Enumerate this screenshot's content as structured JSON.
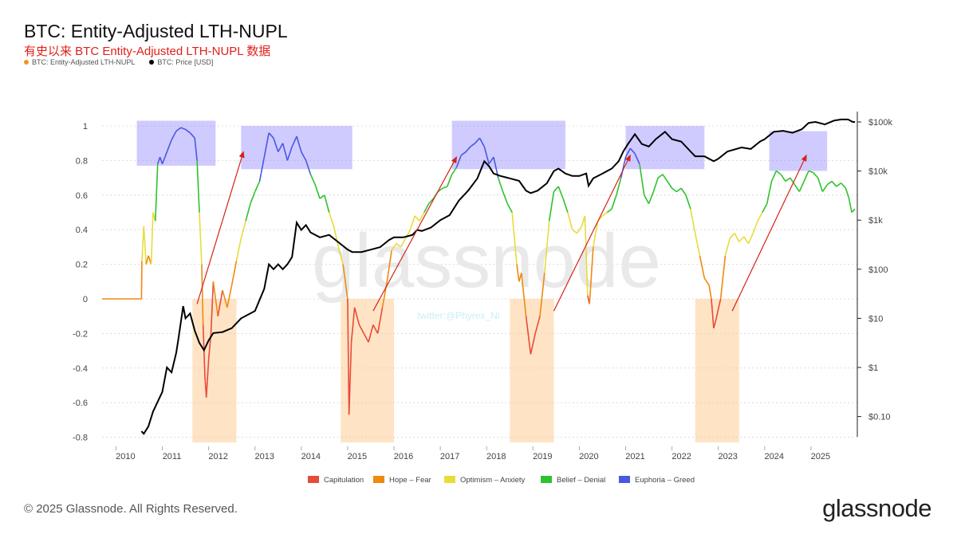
{
  "header": {
    "title": "BTC: Entity-Adjusted LTH-NUPL",
    "subtitle": "有史以来 BTC Entity-Adjusted LTH-NUPL 数据",
    "legend": [
      {
        "label": "BTC: Entity-Adjusted LTH-NUPL",
        "color": "#f7931a"
      },
      {
        "label": "BTC: Price [USD]",
        "color": "#000000"
      }
    ]
  },
  "watermark": "glassnode",
  "handle": "twitter:@Phyrex_Ni",
  "footer": {
    "copyright": "© 2025 Glassnode. All Rights Reserved.",
    "logo": "glassnode"
  },
  "chart_data": {
    "type": "line",
    "title": "BTC: Entity-Adjusted LTH-NUPL",
    "x_ticks": [
      2010,
      2011,
      2012,
      2013,
      2014,
      2015,
      2016,
      2017,
      2018,
      2019,
      2020,
      2021,
      2022,
      2023,
      2024,
      2025
    ],
    "xlim": [
      2009.7,
      2026.0
    ],
    "y_left": {
      "ticks": [
        1,
        0.8,
        0.6,
        0.4,
        0.2,
        0,
        -0.2,
        -0.4,
        -0.6,
        -0.8
      ],
      "lim": [
        -0.8,
        1.0
      ]
    },
    "y_right": {
      "ticks": [
        "$100k",
        "$10k",
        "$1k",
        "$100",
        "$10",
        "$1",
        "$0.10"
      ],
      "ticks_log10": [
        5,
        4,
        3,
        2,
        1,
        0,
        -1
      ]
    },
    "zones": [
      {
        "name": "Capitulation",
        "color": "#e84a3b",
        "lo": -1.0,
        "hi": 0
      },
      {
        "name": "Hope – Fear",
        "color": "#f0890f",
        "lo": 0,
        "hi": 0.25
      },
      {
        "name": "Optimism – Anxiety",
        "color": "#e8dc3a",
        "lo": 0.25,
        "hi": 0.5
      },
      {
        "name": "Belief – Denial",
        "color": "#2ec22e",
        "lo": 0.5,
        "hi": 0.75
      },
      {
        "name": "Euphoria – Greed",
        "color": "#4a58e0",
        "lo": 0.75,
        "hi": 1.1
      }
    ],
    "legend_bottom": [
      "Capitulation",
      "Hope – Fear",
      "Optimism – Anxiety",
      "Belief – Denial",
      "Euphoria – Greed"
    ],
    "nupl_series": {
      "name": "BTC: Entity-Adjusted LTH-NUPL",
      "points": [
        [
          2009.7,
          0
        ],
        [
          2010.55,
          0
        ],
        [
          2010.56,
          0.22
        ],
        [
          2010.6,
          0.42
        ],
        [
          2010.65,
          0.2
        ],
        [
          2010.7,
          0.25
        ],
        [
          2010.76,
          0.2
        ],
        [
          2010.8,
          0.5
        ],
        [
          2010.85,
          0.45
        ],
        [
          2010.9,
          0.78
        ],
        [
          2010.95,
          0.82
        ],
        [
          2011.0,
          0.78
        ],
        [
          2011.1,
          0.85
        ],
        [
          2011.2,
          0.92
        ],
        [
          2011.3,
          0.97
        ],
        [
          2011.4,
          0.99
        ],
        [
          2011.5,
          0.98
        ],
        [
          2011.6,
          0.96
        ],
        [
          2011.7,
          0.93
        ],
        [
          2011.75,
          0.8
        ],
        [
          2011.8,
          0.5
        ],
        [
          2011.85,
          0.2
        ],
        [
          2011.88,
          -0.15
        ],
        [
          2011.92,
          -0.45
        ],
        [
          2011.95,
          -0.57
        ],
        [
          2012.0,
          -0.35
        ],
        [
          2012.05,
          -0.2
        ],
        [
          2012.1,
          0.1
        ],
        [
          2012.2,
          -0.1
        ],
        [
          2012.3,
          0.05
        ],
        [
          2012.4,
          -0.05
        ],
        [
          2012.5,
          0.08
        ],
        [
          2012.6,
          0.22
        ],
        [
          2012.7,
          0.35
        ],
        [
          2012.8,
          0.45
        ],
        [
          2012.9,
          0.55
        ],
        [
          2013.0,
          0.62
        ],
        [
          2013.1,
          0.68
        ],
        [
          2013.2,
          0.82
        ],
        [
          2013.3,
          0.96
        ],
        [
          2013.4,
          0.93
        ],
        [
          2013.5,
          0.85
        ],
        [
          2013.6,
          0.9
        ],
        [
          2013.7,
          0.8
        ],
        [
          2013.8,
          0.88
        ],
        [
          2013.9,
          0.94
        ],
        [
          2014.0,
          0.85
        ],
        [
          2014.1,
          0.8
        ],
        [
          2014.2,
          0.72
        ],
        [
          2014.3,
          0.66
        ],
        [
          2014.4,
          0.58
        ],
        [
          2014.5,
          0.6
        ],
        [
          2014.6,
          0.5
        ],
        [
          2014.7,
          0.42
        ],
        [
          2014.8,
          0.3
        ],
        [
          2014.9,
          0.2
        ],
        [
          2015.0,
          0.0
        ],
        [
          2015.03,
          -0.67
        ],
        [
          2015.08,
          -0.25
        ],
        [
          2015.15,
          -0.05
        ],
        [
          2015.25,
          -0.15
        ],
        [
          2015.35,
          -0.2
        ],
        [
          2015.45,
          -0.25
        ],
        [
          2015.55,
          -0.15
        ],
        [
          2015.65,
          -0.2
        ],
        [
          2015.75,
          -0.05
        ],
        [
          2015.85,
          0.1
        ],
        [
          2015.95,
          0.28
        ],
        [
          2016.05,
          0.32
        ],
        [
          2016.15,
          0.3
        ],
        [
          2016.25,
          0.35
        ],
        [
          2016.35,
          0.4
        ],
        [
          2016.45,
          0.48
        ],
        [
          2016.55,
          0.45
        ],
        [
          2016.65,
          0.5
        ],
        [
          2016.75,
          0.55
        ],
        [
          2016.85,
          0.58
        ],
        [
          2016.95,
          0.62
        ],
        [
          2017.05,
          0.64
        ],
        [
          2017.15,
          0.65
        ],
        [
          2017.25,
          0.72
        ],
        [
          2017.35,
          0.76
        ],
        [
          2017.45,
          0.83
        ],
        [
          2017.55,
          0.85
        ],
        [
          2017.65,
          0.88
        ],
        [
          2017.75,
          0.9
        ],
        [
          2017.85,
          0.93
        ],
        [
          2017.95,
          0.88
        ],
        [
          2018.05,
          0.78
        ],
        [
          2018.15,
          0.82
        ],
        [
          2018.25,
          0.7
        ],
        [
          2018.35,
          0.62
        ],
        [
          2018.45,
          0.55
        ],
        [
          2018.55,
          0.5
        ],
        [
          2018.6,
          0.35
        ],
        [
          2018.65,
          0.2
        ],
        [
          2018.7,
          0.1
        ],
        [
          2018.75,
          0.15
        ],
        [
          2018.85,
          -0.1
        ],
        [
          2018.95,
          -0.32
        ],
        [
          2019.05,
          -0.2
        ],
        [
          2019.15,
          -0.1
        ],
        [
          2019.25,
          0.15
        ],
        [
          2019.35,
          0.45
        ],
        [
          2019.45,
          0.62
        ],
        [
          2019.55,
          0.65
        ],
        [
          2019.65,
          0.58
        ],
        [
          2019.75,
          0.5
        ],
        [
          2019.85,
          0.4
        ],
        [
          2019.95,
          0.38
        ],
        [
          2020.05,
          0.42
        ],
        [
          2020.12,
          0.48
        ],
        [
          2020.18,
          0.02
        ],
        [
          2020.22,
          -0.03
        ],
        [
          2020.3,
          0.3
        ],
        [
          2020.4,
          0.45
        ],
        [
          2020.5,
          0.48
        ],
        [
          2020.6,
          0.5
        ],
        [
          2020.7,
          0.52
        ],
        [
          2020.8,
          0.6
        ],
        [
          2020.9,
          0.7
        ],
        [
          2021.0,
          0.82
        ],
        [
          2021.1,
          0.87
        ],
        [
          2021.2,
          0.84
        ],
        [
          2021.3,
          0.78
        ],
        [
          2021.4,
          0.6
        ],
        [
          2021.5,
          0.55
        ],
        [
          2021.6,
          0.62
        ],
        [
          2021.7,
          0.7
        ],
        [
          2021.8,
          0.72
        ],
        [
          2021.9,
          0.68
        ],
        [
          2022.0,
          0.64
        ],
        [
          2022.1,
          0.62
        ],
        [
          2022.2,
          0.64
        ],
        [
          2022.3,
          0.6
        ],
        [
          2022.4,
          0.52
        ],
        [
          2022.5,
          0.38
        ],
        [
          2022.6,
          0.25
        ],
        [
          2022.7,
          0.12
        ],
        [
          2022.8,
          0.08
        ],
        [
          2022.85,
          0.0
        ],
        [
          2022.9,
          -0.17
        ],
        [
          2022.95,
          -0.12
        ],
        [
          2023.05,
          0.0
        ],
        [
          2023.15,
          0.25
        ],
        [
          2023.25,
          0.35
        ],
        [
          2023.35,
          0.38
        ],
        [
          2023.45,
          0.33
        ],
        [
          2023.55,
          0.36
        ],
        [
          2023.65,
          0.32
        ],
        [
          2023.75,
          0.38
        ],
        [
          2023.85,
          0.45
        ],
        [
          2023.95,
          0.5
        ],
        [
          2024.05,
          0.55
        ],
        [
          2024.15,
          0.68
        ],
        [
          2024.25,
          0.74
        ],
        [
          2024.35,
          0.72
        ],
        [
          2024.45,
          0.68
        ],
        [
          2024.55,
          0.7
        ],
        [
          2024.65,
          0.66
        ],
        [
          2024.75,
          0.62
        ],
        [
          2024.85,
          0.68
        ],
        [
          2024.95,
          0.74
        ],
        [
          2025.05,
          0.73
        ],
        [
          2025.15,
          0.7
        ],
        [
          2025.25,
          0.62
        ],
        [
          2025.35,
          0.66
        ],
        [
          2025.45,
          0.68
        ],
        [
          2025.55,
          0.65
        ],
        [
          2025.65,
          0.67
        ],
        [
          2025.75,
          0.64
        ],
        [
          2025.82,
          0.58
        ],
        [
          2025.88,
          0.5
        ],
        [
          2025.95,
          0.52
        ]
      ]
    },
    "price_series": {
      "name": "BTC: Price [USD]",
      "log10_points": [
        [
          2010.55,
          -1.3
        ],
        [
          2010.6,
          -1.35
        ],
        [
          2010.7,
          -1.2
        ],
        [
          2010.8,
          -0.9
        ],
        [
          2010.9,
          -0.7
        ],
        [
          2011.0,
          -0.5
        ],
        [
          2011.1,
          0.0
        ],
        [
          2011.2,
          -0.1
        ],
        [
          2011.3,
          0.3
        ],
        [
          2011.35,
          0.6
        ],
        [
          2011.45,
          1.25
        ],
        [
          2011.5,
          1.0
        ],
        [
          2011.6,
          1.1
        ],
        [
          2011.7,
          0.75
        ],
        [
          2011.8,
          0.5
        ],
        [
          2011.9,
          0.35
        ],
        [
          2012.0,
          0.55
        ],
        [
          2012.1,
          0.7
        ],
        [
          2012.3,
          0.72
        ],
        [
          2012.5,
          0.8
        ],
        [
          2012.7,
          1.0
        ],
        [
          2012.9,
          1.1
        ],
        [
          2013.0,
          1.15
        ],
        [
          2013.2,
          1.6
        ],
        [
          2013.3,
          2.1
        ],
        [
          2013.4,
          2.0
        ],
        [
          2013.5,
          2.1
        ],
        [
          2013.6,
          2.0
        ],
        [
          2013.7,
          2.1
        ],
        [
          2013.8,
          2.25
        ],
        [
          2013.9,
          2.95
        ],
        [
          2014.0,
          2.8
        ],
        [
          2014.1,
          2.9
        ],
        [
          2014.2,
          2.75
        ],
        [
          2014.4,
          2.65
        ],
        [
          2014.6,
          2.7
        ],
        [
          2014.8,
          2.55
        ],
        [
          2015.0,
          2.4
        ],
        [
          2015.1,
          2.35
        ],
        [
          2015.3,
          2.35
        ],
        [
          2015.5,
          2.4
        ],
        [
          2015.7,
          2.45
        ],
        [
          2015.9,
          2.6
        ],
        [
          2016.0,
          2.65
        ],
        [
          2016.2,
          2.65
        ],
        [
          2016.4,
          2.7
        ],
        [
          2016.5,
          2.8
        ],
        [
          2016.6,
          2.78
        ],
        [
          2016.8,
          2.85
        ],
        [
          2017.0,
          3.0
        ],
        [
          2017.2,
          3.1
        ],
        [
          2017.4,
          3.4
        ],
        [
          2017.6,
          3.6
        ],
        [
          2017.8,
          3.85
        ],
        [
          2017.95,
          4.2
        ],
        [
          2018.05,
          4.1
        ],
        [
          2018.15,
          3.95
        ],
        [
          2018.3,
          3.9
        ],
        [
          2018.5,
          3.85
        ],
        [
          2018.7,
          3.8
        ],
        [
          2018.85,
          3.6
        ],
        [
          2018.95,
          3.55
        ],
        [
          2019.1,
          3.6
        ],
        [
          2019.3,
          3.75
        ],
        [
          2019.45,
          4.0
        ],
        [
          2019.55,
          4.05
        ],
        [
          2019.7,
          3.95
        ],
        [
          2019.85,
          3.9
        ],
        [
          2020.0,
          3.9
        ],
        [
          2020.15,
          3.95
        ],
        [
          2020.2,
          3.7
        ],
        [
          2020.3,
          3.85
        ],
        [
          2020.5,
          3.95
        ],
        [
          2020.7,
          4.05
        ],
        [
          2020.85,
          4.2
        ],
        [
          2020.95,
          4.4
        ],
        [
          2021.05,
          4.55
        ],
        [
          2021.2,
          4.75
        ],
        [
          2021.35,
          4.55
        ],
        [
          2021.5,
          4.5
        ],
        [
          2021.65,
          4.65
        ],
        [
          2021.85,
          4.8
        ],
        [
          2022.0,
          4.65
        ],
        [
          2022.2,
          4.6
        ],
        [
          2022.4,
          4.4
        ],
        [
          2022.5,
          4.3
        ],
        [
          2022.7,
          4.3
        ],
        [
          2022.9,
          4.2
        ],
        [
          2023.0,
          4.25
        ],
        [
          2023.2,
          4.4
        ],
        [
          2023.5,
          4.48
        ],
        [
          2023.7,
          4.45
        ],
        [
          2023.9,
          4.6
        ],
        [
          2024.0,
          4.65
        ],
        [
          2024.2,
          4.8
        ],
        [
          2024.4,
          4.82
        ],
        [
          2024.6,
          4.78
        ],
        [
          2024.8,
          4.85
        ],
        [
          2024.95,
          4.98
        ],
        [
          2025.1,
          5.0
        ],
        [
          2025.3,
          4.95
        ],
        [
          2025.5,
          5.03
        ],
        [
          2025.65,
          5.05
        ],
        [
          2025.8,
          5.05
        ],
        [
          2025.9,
          5.0
        ],
        [
          2025.95,
          5.0
        ]
      ]
    },
    "highlight_boxes": [
      {
        "type": "euphoria",
        "x0": 2010.45,
        "x1": 2012.15,
        "y0": 0.77,
        "y1": 1.03
      },
      {
        "type": "euphoria",
        "x0": 2012.7,
        "x1": 2015.1,
        "y0": 0.75,
        "y1": 1.0
      },
      {
        "type": "euphoria",
        "x0": 2017.25,
        "x1": 2019.7,
        "y0": 0.75,
        "y1": 1.03
      },
      {
        "type": "euphoria",
        "x0": 2021.0,
        "x1": 2022.7,
        "y0": 0.75,
        "y1": 1.0
      },
      {
        "type": "euphoria",
        "x0": 2024.1,
        "x1": 2025.35,
        "y0": 0.74,
        "y1": 0.97
      },
      {
        "type": "capitulation",
        "x0": 2011.65,
        "x1": 2012.6,
        "y0": -0.83,
        "y1": 0.0
      },
      {
        "type": "capitulation",
        "x0": 2014.85,
        "x1": 2016.0,
        "y0": -0.83,
        "y1": 0.0
      },
      {
        "type": "capitulation",
        "x0": 2018.5,
        "x1": 2019.45,
        "y0": -0.83,
        "y1": 0.0
      },
      {
        "type": "capitulation",
        "x0": 2022.5,
        "x1": 2023.45,
        "y0": -0.83,
        "y1": 0.0
      }
    ],
    "arrows": [
      {
        "x0": 2011.75,
        "y0": -0.03,
        "x1": 2012.75,
        "y1": 0.85
      },
      {
        "x0": 2015.55,
        "y0": -0.07,
        "x1": 2017.35,
        "y1": 0.82
      },
      {
        "x0": 2019.45,
        "y0": -0.07,
        "x1": 2021.1,
        "y1": 0.83
      },
      {
        "x0": 2023.3,
        "y0": -0.07,
        "x1": 2024.9,
        "y1": 0.83
      }
    ]
  }
}
